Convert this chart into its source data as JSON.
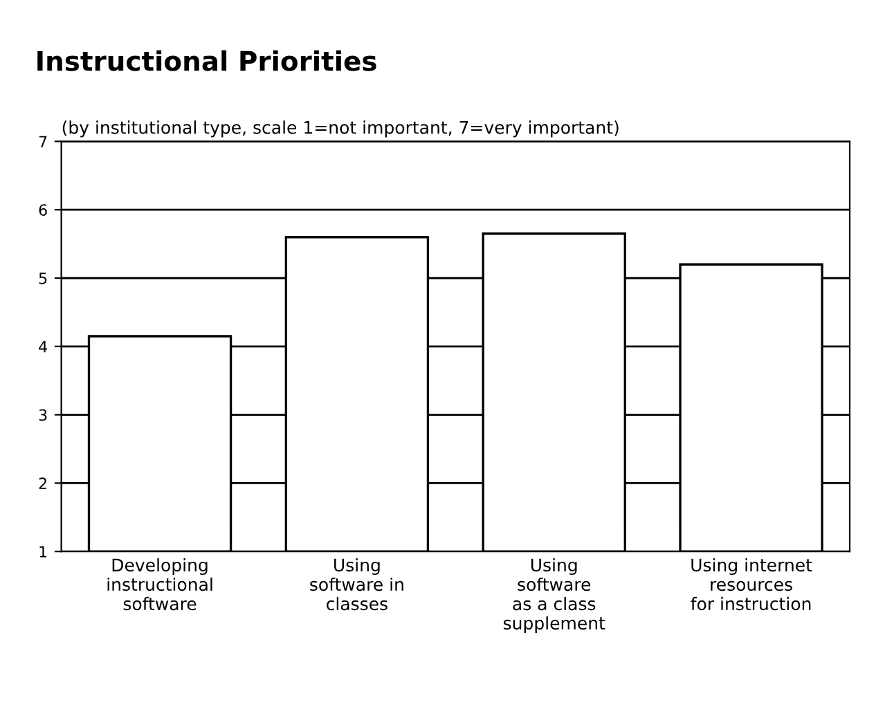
{
  "chart_data": {
    "type": "bar",
    "title": "Instructional Priorities",
    "subtitle": "(by institutional type, scale 1=not important, 7=very important)",
    "categories": [
      "Developing\ninstructional\nsoftware",
      "Using\nsoftware in\nclasses",
      "Using\nsoftware\nas a class\nsupplement",
      "Using internet\nresources\nfor instruction"
    ],
    "values": [
      4.15,
      5.6,
      5.65,
      5.2
    ],
    "color": "#ffffff",
    "ylim": [
      1,
      7
    ],
    "yticks": [
      1,
      2,
      3,
      4,
      5,
      6,
      7
    ],
    "grid": "y"
  }
}
